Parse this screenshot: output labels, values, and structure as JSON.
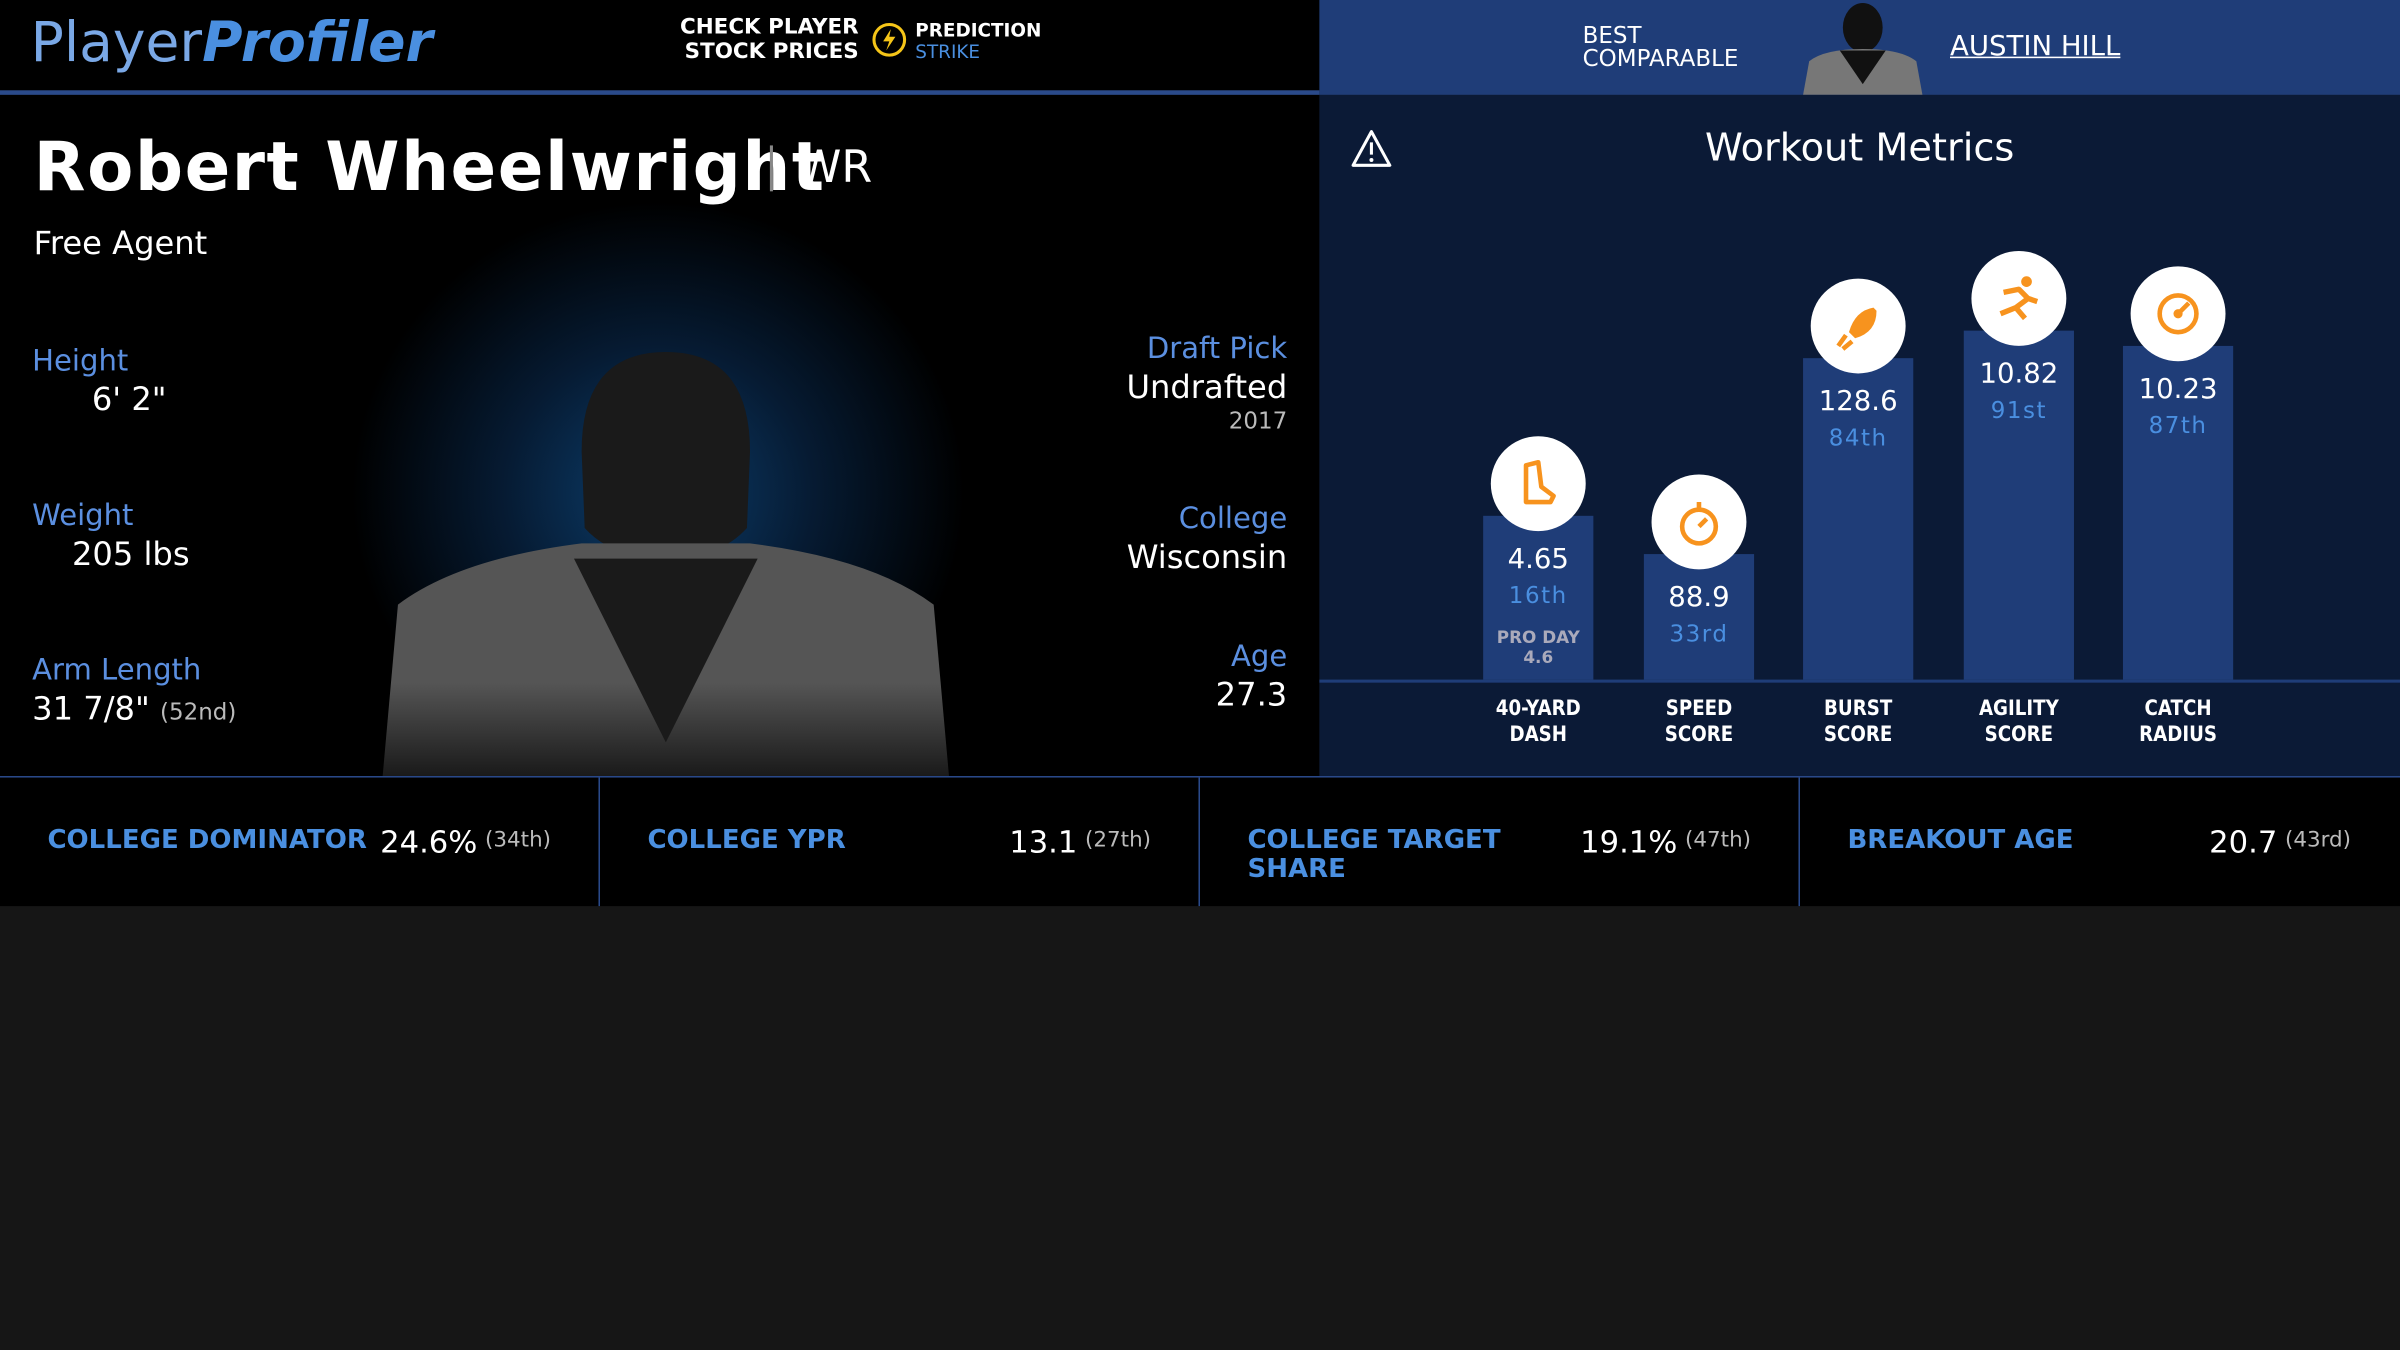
{
  "header": {
    "logo_first": "Player",
    "logo_second": "Profiler",
    "promo": [
      "CHECK PLAYER",
      "STOCK PRICES"
    ],
    "brand": [
      "PREDICTION",
      "STRIKE"
    ],
    "comparable_label": [
      "BEST",
      "COMPARABLE"
    ],
    "comparable_name": "AUSTIN HILL"
  },
  "player": {
    "name": "Robert Wheelwright",
    "position": "WR",
    "team": "Free Agent",
    "left_stats": [
      {
        "label": "Height",
        "value": "6' 2\""
      },
      {
        "label": "Weight",
        "value": "205 lbs"
      },
      {
        "label": "Arm Length",
        "value": "31 7/8\"",
        "rank": "(52nd)"
      }
    ],
    "right_stats": [
      {
        "label": "Draft Pick",
        "value": "Undrafted",
        "sub": "2017"
      },
      {
        "label": "College",
        "value": "Wisconsin"
      },
      {
        "label": "Age",
        "value": "27.3"
      }
    ]
  },
  "workout": {
    "title": "Workout Metrics",
    "metrics": [
      {
        "label": [
          "40-YARD",
          "DASH"
        ],
        "value": "4.65",
        "rank": "16th",
        "note": "PRO DAY",
        "note_value": "4.6"
      },
      {
        "label": [
          "SPEED",
          "SCORE"
        ],
        "value": "88.9",
        "rank": "33rd"
      },
      {
        "label": [
          "BURST",
          "SCORE"
        ],
        "value": "128.6",
        "rank": "84th"
      },
      {
        "label": [
          "AGILITY",
          "SCORE"
        ],
        "value": "10.82",
        "rank": "91st"
      },
      {
        "label": [
          "CATCH",
          "RADIUS"
        ],
        "value": "10.23",
        "rank": "87th"
      }
    ]
  },
  "college_stats": [
    {
      "label": "COLLEGE DOMINATOR",
      "value": "24.6%",
      "rank": "(34th)"
    },
    {
      "label": "COLLEGE YPR",
      "value": "13.1",
      "rank": "(27th)"
    },
    {
      "label": "COLLEGE TARGET SHARE",
      "value": "19.1%",
      "rank": "(47th)"
    },
    {
      "label": "BREAKOUT AGE",
      "value": "20.7",
      "rank": "(43rd)"
    }
  ]
}
